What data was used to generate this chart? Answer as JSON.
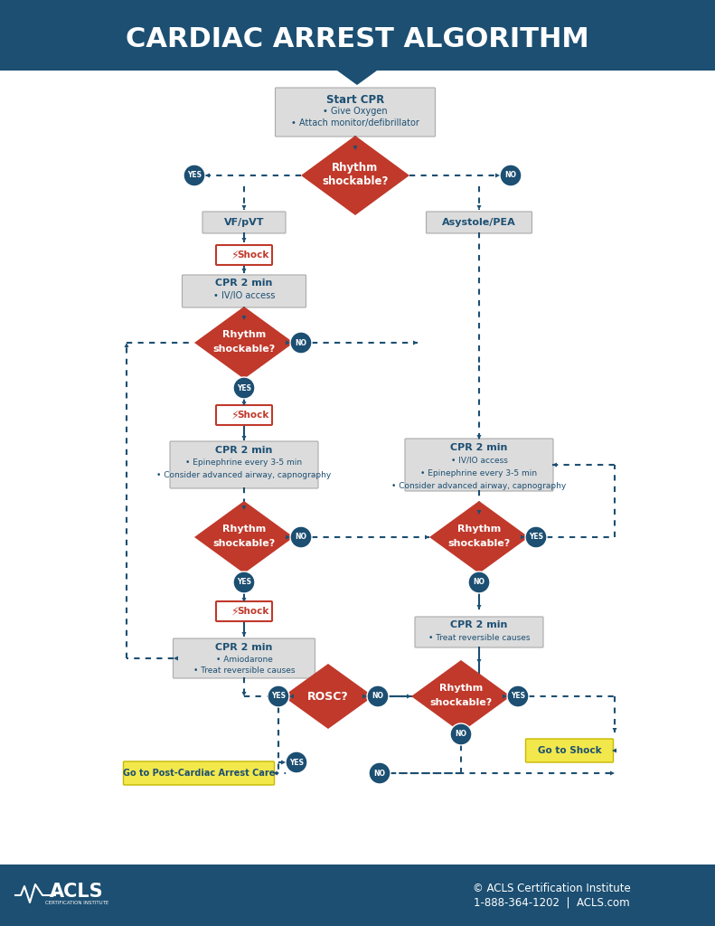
{
  "title": "CARDIAC ARREST ALGORITHM",
  "title_bg": "#1c4f72",
  "title_color": "#ffffff",
  "bg_color": "#ffffff",
  "footer_bg": "#1c4f72",
  "footer_text1": "© ACLS Certification Institute",
  "footer_text2": "1-888-364-1202  |  ACLS.com",
  "footer_color": "#ffffff",
  "box_gray": "#dcdcdc",
  "box_red": "#c0392b",
  "box_yellow": "#f2e84b",
  "diamond_red": "#c0392b",
  "circle_blue": "#1c4f72",
  "dashed_color": "#1c4f72",
  "text_dark": "#1c4f72",
  "text_white": "#ffffff",
  "text_red": "#c0392b",
  "shock_border": "#c0392b",
  "shock_text_color": "#c0392b"
}
